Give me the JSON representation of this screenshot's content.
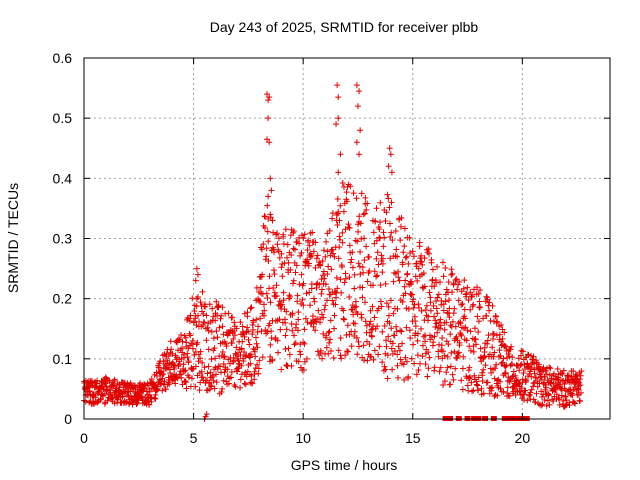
{
  "chart_data": {
    "type": "scatter",
    "title": "Day 243 of 2025, SRMTID for receiver plbb",
    "xlabel": "GPS time / hours",
    "ylabel": "SRMTID / TECUs",
    "xlim": [
      0,
      24
    ],
    "ylim": [
      0,
      0.6
    ],
    "x_ticks": [
      0,
      5,
      10,
      15,
      20
    ],
    "x_tick_labels": [
      "0",
      "5",
      "10",
      "15",
      "20"
    ],
    "y_ticks": [
      0,
      0.1,
      0.2,
      0.3,
      0.4,
      0.5,
      0.6
    ],
    "y_tick_labels": [
      "0",
      "0.1",
      "0.2",
      "0.3",
      "0.4",
      "0.5",
      "0.6"
    ],
    "grid": true,
    "marker": "+",
    "marker_color": "#e00000",
    "series": [
      {
        "name": "SRMTID",
        "envelope": [
          [
            0.0,
            0.025,
            0.065
          ],
          [
            1.0,
            0.025,
            0.07
          ],
          [
            2.0,
            0.025,
            0.06
          ],
          [
            3.0,
            0.02,
            0.06
          ],
          [
            3.5,
            0.04,
            0.1
          ],
          [
            4.0,
            0.06,
            0.14
          ],
          [
            4.5,
            0.05,
            0.14
          ],
          [
            5.0,
            0.05,
            0.22
          ],
          [
            6.0,
            0.04,
            0.2
          ],
          [
            7.0,
            0.05,
            0.16
          ],
          [
            7.8,
            0.06,
            0.2
          ],
          [
            8.3,
            0.1,
            0.36
          ],
          [
            9.0,
            0.08,
            0.32
          ],
          [
            10.0,
            0.08,
            0.32
          ],
          [
            11.0,
            0.1,
            0.3
          ],
          [
            11.8,
            0.1,
            0.4
          ],
          [
            12.5,
            0.1,
            0.38
          ],
          [
            13.5,
            0.08,
            0.36
          ],
          [
            14.0,
            0.06,
            0.38
          ],
          [
            15.0,
            0.06,
            0.3
          ],
          [
            16.0,
            0.06,
            0.28
          ],
          [
            17.0,
            0.05,
            0.24
          ],
          [
            18.0,
            0.04,
            0.22
          ],
          [
            18.5,
            0.04,
            0.2
          ],
          [
            19.5,
            0.03,
            0.12
          ],
          [
            20.3,
            0.03,
            0.11
          ],
          [
            21.0,
            0.02,
            0.09
          ],
          [
            22.0,
            0.02,
            0.08
          ],
          [
            22.7,
            0.03,
            0.08
          ]
        ],
        "outliers": [
          [
            8.35,
            0.54
          ],
          [
            8.45,
            0.535
          ],
          [
            8.4,
            0.53
          ],
          [
            8.4,
            0.5
          ],
          [
            8.35,
            0.465
          ],
          [
            8.45,
            0.46
          ],
          [
            8.5,
            0.4
          ],
          [
            8.55,
            0.38
          ],
          [
            8.4,
            0.37
          ],
          [
            8.5,
            0.34
          ],
          [
            8.6,
            0.33
          ],
          [
            11.55,
            0.555
          ],
          [
            11.6,
            0.535
          ],
          [
            11.6,
            0.5
          ],
          [
            11.5,
            0.49
          ],
          [
            11.7,
            0.44
          ],
          [
            11.6,
            0.41
          ],
          [
            12.45,
            0.555
          ],
          [
            12.55,
            0.545
          ],
          [
            12.5,
            0.52
          ],
          [
            12.6,
            0.48
          ],
          [
            12.45,
            0.46
          ],
          [
            12.55,
            0.44
          ],
          [
            13.95,
            0.45
          ],
          [
            14.0,
            0.44
          ],
          [
            13.9,
            0.42
          ],
          [
            14.05,
            0.41
          ],
          [
            5.15,
            0.25
          ],
          [
            5.2,
            0.24
          ],
          [
            5.1,
            0.23
          ],
          [
            5.5,
            0.0
          ],
          [
            5.6,
            0.008
          ],
          [
            5.55,
            0.004
          ]
        ],
        "zero_markers": [
          16.5,
          16.7,
          17.1,
          17.5,
          17.8,
          18.0,
          18.3,
          18.7,
          19.2,
          19.4,
          19.6,
          19.8,
          20.0,
          20.2
        ]
      }
    ]
  }
}
